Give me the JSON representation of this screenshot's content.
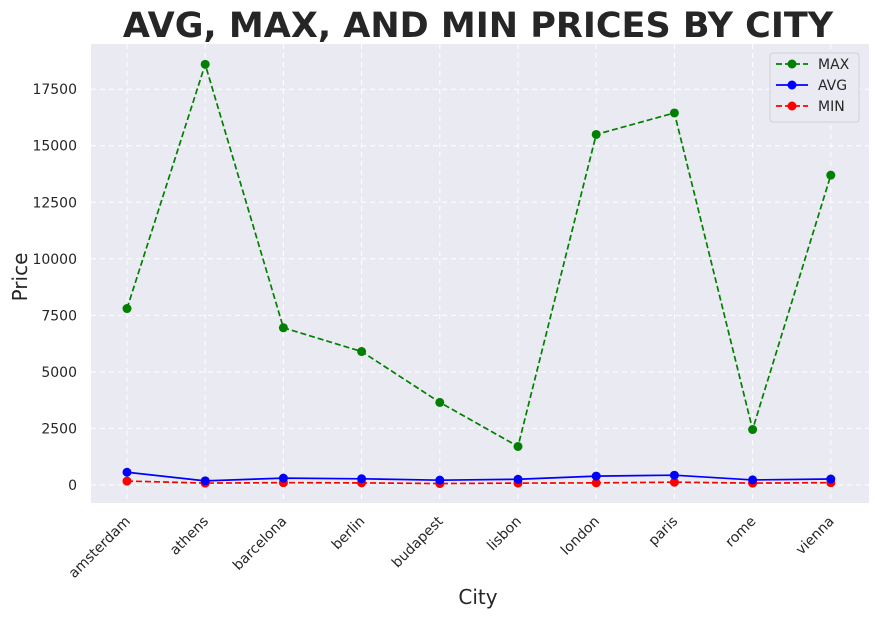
{
  "chart_data": {
    "type": "line",
    "title": "AVG, MAX, AND MIN PRICES BY CITY",
    "xlabel": "City",
    "ylabel": "Price",
    "categories": [
      "amsterdam",
      "athens",
      "barcelona",
      "berlin",
      "budapest",
      "lisbon",
      "london",
      "paris",
      "rome",
      "vienna"
    ],
    "ylim": [
      -800,
      19500
    ],
    "yticks": [
      0,
      2500,
      5000,
      7500,
      10000,
      12500,
      15000,
      17500
    ],
    "grid": true,
    "legend_position": "top-right",
    "series": [
      {
        "name": "MAX",
        "color": "#008000",
        "line_style": "dashed",
        "marker": "circle",
        "values": [
          7800,
          18600,
          6950,
          5900,
          3650,
          1700,
          15500,
          16450,
          2450,
          13700
        ]
      },
      {
        "name": "AVG",
        "color": "#0000ff",
        "line_style": "solid",
        "marker": "circle",
        "values": [
          560,
          180,
          300,
          270,
          210,
          250,
          390,
          430,
          220,
          260
        ]
      },
      {
        "name": "MIN",
        "color": "#ff0000",
        "line_style": "dashed",
        "marker": "circle",
        "values": [
          170,
          80,
          100,
          90,
          60,
          80,
          90,
          120,
          80,
          100
        ]
      }
    ]
  }
}
